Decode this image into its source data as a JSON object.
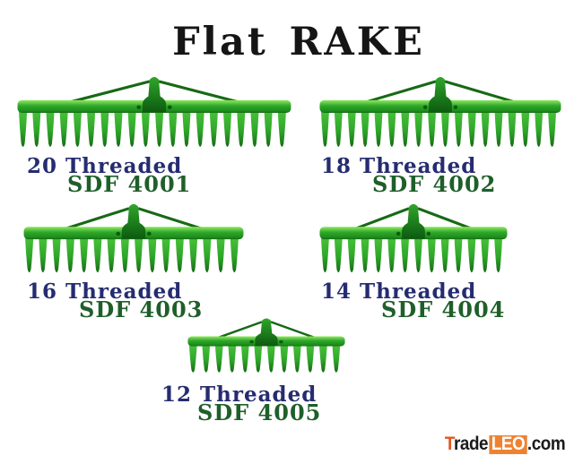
{
  "title": "Flat RAKE",
  "products": [
    {
      "threads": "20 Threaded",
      "model": "SDF 4001",
      "tines": 20
    },
    {
      "threads": "18 Threaded",
      "model": "SDF 4002",
      "tines": 18
    },
    {
      "threads": "16 Threaded",
      "model": "SDF 4003",
      "tines": 16
    },
    {
      "threads": "14 Threaded",
      "model": "SDF 4004",
      "tines": 14
    },
    {
      "threads": "12 Threaded",
      "model": "SDF 4005",
      "tines": 12
    }
  ],
  "watermark": {
    "t": "T",
    "rade": "rade",
    "leo": "LEO",
    "com": ".com"
  },
  "colors": {
    "background": "#ffffff",
    "title_text": "#151515",
    "thread_label": "#252c70",
    "model_label": "#1f5f2a",
    "rake_highlight": "#8ce95f",
    "rake_tine_top": "#47c238",
    "rake_mid": "#2fa62a",
    "rake_dark": "#1d8c1c",
    "rake_edge": "#146c13",
    "rake_socket": "#0d5a10",
    "rake_brace": "#176915",
    "logo_t_orange": "#e2571f",
    "logo_box_orange": "#ee8232",
    "logo_black": "#1b1b1b"
  }
}
